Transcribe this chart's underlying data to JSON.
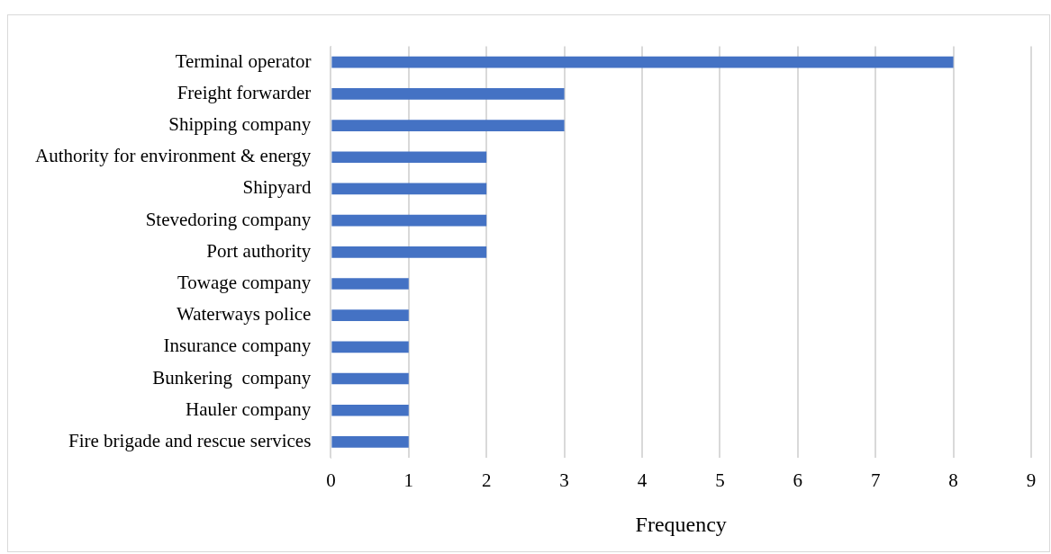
{
  "chart_data": {
    "type": "bar",
    "orientation": "horizontal",
    "xlabel": "Frequency",
    "categories": [
      "Terminal operator",
      "Freight forwarder",
      "Shipping company",
      "Authority for environment & energy",
      "Shipyard",
      "Stevedoring company",
      "Port authority",
      "Towage company",
      "Waterways police",
      "Insurance company",
      "Bunkering  company",
      "Hauler company",
      "Fire brigade and rescue services"
    ],
    "values": [
      8,
      3,
      3,
      2,
      2,
      2,
      2,
      1,
      1,
      1,
      1,
      1,
      1
    ],
    "color": "#4472c4",
    "xlim": [
      0,
      9
    ],
    "xticks": [
      0,
      1,
      2,
      3,
      4,
      5,
      6,
      7,
      8,
      9
    ],
    "grid": "x",
    "legend": false
  }
}
